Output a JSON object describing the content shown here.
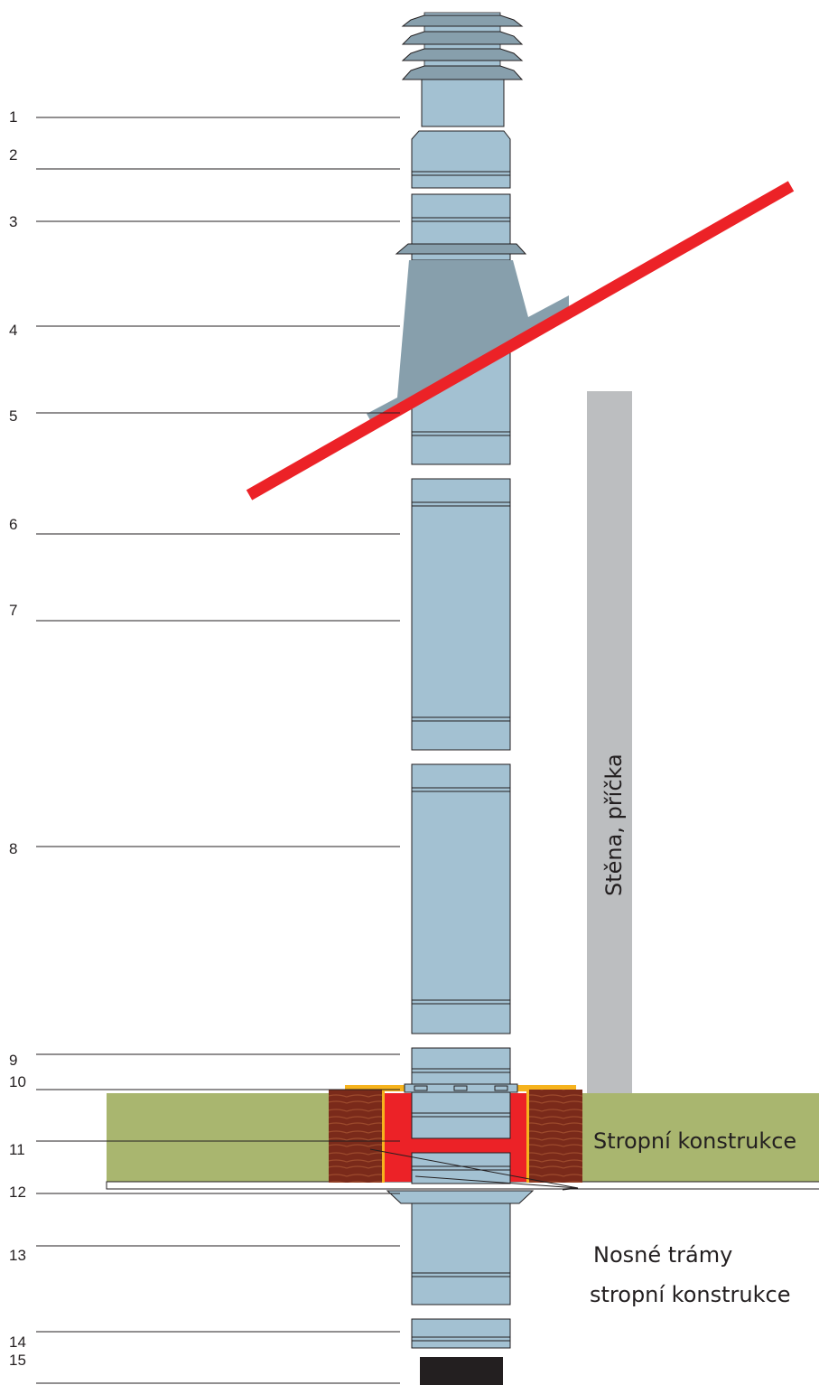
{
  "labels": [
    "1",
    "2",
    "3",
    "4",
    "5",
    "6",
    "7",
    "8",
    "9",
    "10",
    "11",
    "12",
    "13",
    "14",
    "15"
  ],
  "wall_label": "Stěna, příčka",
  "ceiling_label": "Stropní konstrukce",
  "beams_label": [
    "Nosné trámy",
    "stropní konstrukce"
  ],
  "colors": {
    "pipe": "#a3c1d2",
    "flashing": "#879fac",
    "roof_line": "#ec2227",
    "wall": "#bcbec0",
    "ceiling": "#a9b66f",
    "fire_insulation": "#ec2227",
    "wood": "#7a2a1a",
    "tape": "#f6b31d",
    "cap": "#231f20"
  }
}
